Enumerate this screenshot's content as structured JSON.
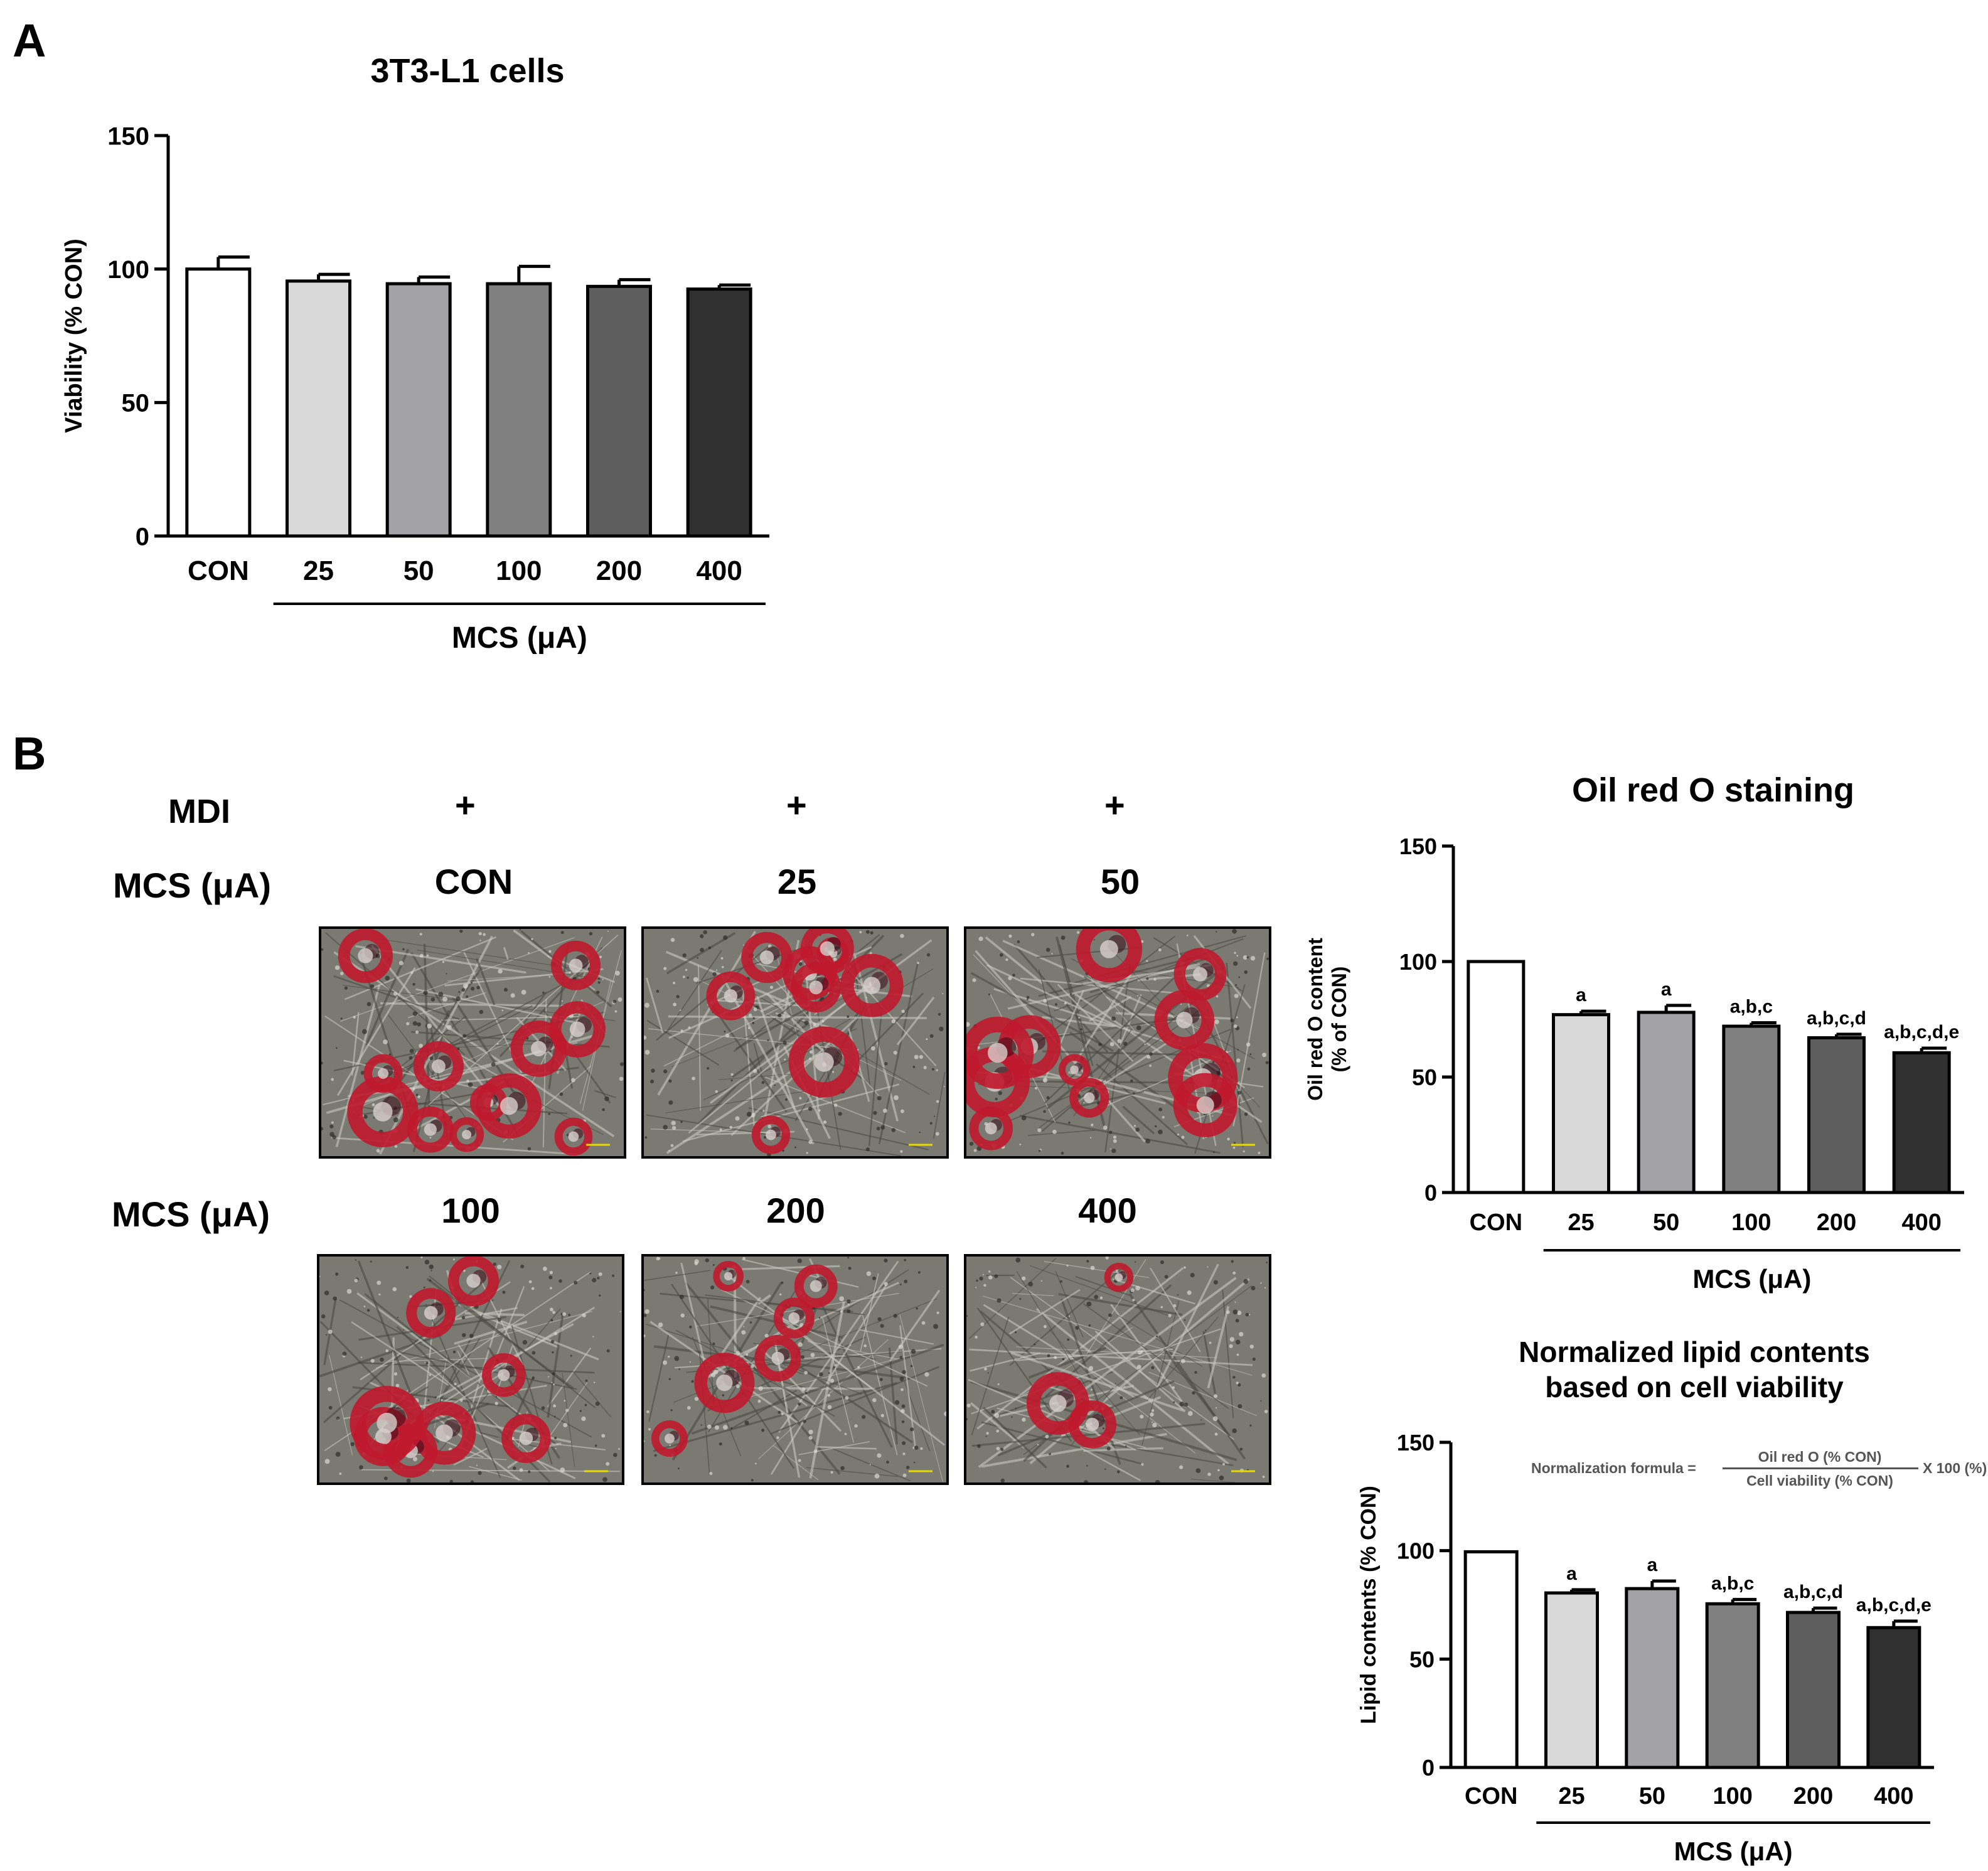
{
  "panels": {
    "a": {
      "label": "A"
    },
    "b": {
      "label": "B"
    }
  },
  "micrographs": {
    "mdi_label": "MDI",
    "mdi_values": [
      "+",
      "+",
      "+"
    ],
    "row1": {
      "factor_label": "MCS (μA)",
      "columns": [
        "CON",
        "25",
        "50"
      ]
    },
    "row2": {
      "factor_label": "MCS (μA)",
      "columns": [
        "100",
        "200",
        "400"
      ]
    }
  },
  "formula": {
    "prefix": "Normalization formula =",
    "numerator": "Oil red O (%  CON)",
    "denominator": "Cell viability (% CON)",
    "suffix": "X 100 (%)"
  },
  "colors": {
    "bars": [
      "#ffffff",
      "#d9d9d9",
      "#a3a3a6",
      "#808080",
      "#5e5e5e",
      "#303030"
    ],
    "stain_red": "#c0182c",
    "stain_dark": "#3a0a18",
    "micrograph_bg": "#7a7a72"
  },
  "chart_data": [
    {
      "type": "bar",
      "title": "3T3-L1 cells",
      "ylabel": "Viability (% CON)",
      "xlabel": "MCS (μA)",
      "categories": [
        "CON",
        "25",
        "50",
        "100",
        "200",
        "400"
      ],
      "values": [
        100,
        95.5,
        94.5,
        94.5,
        93.5,
        92.5
      ],
      "errors": [
        4.5,
        2.5,
        2.5,
        6.5,
        2.5,
        1.5
      ],
      "annotations": [
        "",
        "",
        "",
        "",
        "",
        ""
      ],
      "ylim": [
        0,
        150
      ],
      "yticks": [
        0,
        50,
        100,
        150
      ],
      "grid": false
    },
    {
      "type": "bar",
      "title": "Oil red O staining",
      "ylabel": "Oil red O content\n(% of CON)",
      "xlabel": "MCS (μA)",
      "categories": [
        "CON",
        "25",
        "50",
        "100",
        "200",
        "400"
      ],
      "values": [
        100,
        77,
        78,
        72,
        67,
        60.5
      ],
      "errors": [
        0,
        1.5,
        3,
        1.5,
        1.5,
        2
      ],
      "annotations": [
        "",
        "a",
        "a",
        "a,b,c",
        "a,b,c,d",
        "a,b,c,d,e"
      ],
      "ylim": [
        0,
        150
      ],
      "yticks": [
        0,
        50,
        100,
        150
      ],
      "grid": false
    },
    {
      "type": "bar",
      "title": "Normalized lipid contents\nbased on cell viability",
      "ylabel": "Lipid contents (% CON)",
      "xlabel": "MCS (μA)",
      "categories": [
        "CON",
        "25",
        "50",
        "100",
        "200",
        "400"
      ],
      "values": [
        99.5,
        80.5,
        82.5,
        75.5,
        71.5,
        64.5
      ],
      "errors": [
        0,
        1.5,
        3.5,
        2,
        2,
        3
      ],
      "annotations": [
        "",
        "a",
        "a",
        "a,b,c",
        "a,b,c,d",
        "a,b,c,d,e"
      ],
      "ylim": [
        0,
        150
      ],
      "yticks": [
        0,
        50,
        100,
        150
      ],
      "grid": false
    }
  ]
}
